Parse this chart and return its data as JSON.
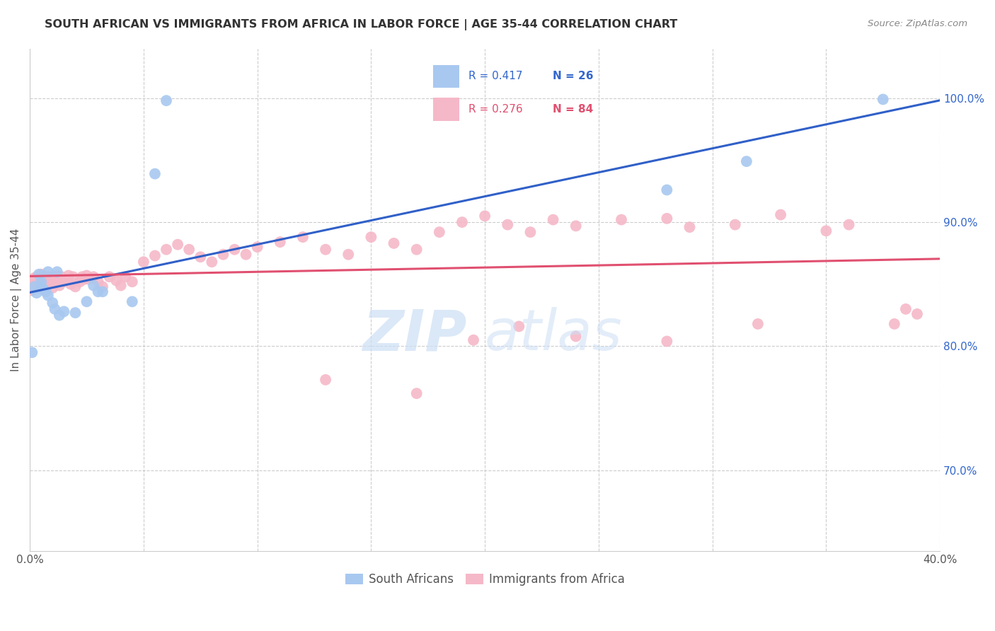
{
  "title": "SOUTH AFRICAN VS IMMIGRANTS FROM AFRICA IN LABOR FORCE | AGE 35-44 CORRELATION CHART",
  "source": "Source: ZipAtlas.com",
  "ylabel": "In Labor Force | Age 35-44",
  "xlim": [
    0.0,
    0.4
  ],
  "ylim": [
    0.635,
    1.04
  ],
  "yticks": [
    0.7,
    0.8,
    0.9,
    1.0
  ],
  "xticks": [
    0.0,
    0.05,
    0.1,
    0.15,
    0.2,
    0.25,
    0.3,
    0.35,
    0.4
  ],
  "blue_color": "#a8c8f0",
  "pink_color": "#f5b8c8",
  "blue_line_color": "#3060c8",
  "pink_line_color": "#e05070",
  "legend_text_blue": "South Africans",
  "legend_text_pink": "Immigrants from Africa",
  "blue_x": [
    0.001,
    0.002,
    0.003,
    0.004,
    0.005,
    0.005,
    0.006,
    0.007,
    0.008,
    0.008,
    0.01,
    0.011,
    0.012,
    0.013,
    0.015,
    0.02,
    0.025,
    0.028,
    0.03,
    0.032,
    0.045,
    0.055,
    0.06,
    0.28,
    0.315,
    0.375
  ],
  "blue_y": [
    0.795,
    0.848,
    0.843,
    0.858,
    0.848,
    0.852,
    0.846,
    0.844,
    0.841,
    0.86,
    0.835,
    0.83,
    0.86,
    0.825,
    0.828,
    0.827,
    0.836,
    0.849,
    0.844,
    0.844,
    0.836,
    0.939,
    0.998,
    0.926,
    0.949,
    0.999
  ],
  "pink_x": [
    0.001,
    0.001,
    0.002,
    0.002,
    0.003,
    0.003,
    0.004,
    0.004,
    0.005,
    0.005,
    0.006,
    0.006,
    0.007,
    0.007,
    0.008,
    0.008,
    0.009,
    0.01,
    0.01,
    0.011,
    0.012,
    0.013,
    0.014,
    0.015,
    0.016,
    0.017,
    0.018,
    0.019,
    0.02,
    0.022,
    0.023,
    0.024,
    0.025,
    0.026,
    0.028,
    0.03,
    0.032,
    0.035,
    0.038,
    0.04,
    0.042,
    0.045,
    0.05,
    0.055,
    0.06,
    0.065,
    0.07,
    0.075,
    0.08,
    0.085,
    0.09,
    0.095,
    0.1,
    0.11,
    0.12,
    0.13,
    0.14,
    0.15,
    0.16,
    0.17,
    0.18,
    0.19,
    0.2,
    0.21,
    0.22,
    0.23,
    0.24,
    0.26,
    0.28,
    0.29,
    0.31,
    0.33,
    0.35,
    0.36,
    0.38,
    0.39,
    0.17,
    0.195,
    0.215,
    0.24,
    0.13,
    0.28,
    0.32,
    0.385
  ],
  "pink_y": [
    0.845,
    0.852,
    0.848,
    0.855,
    0.85,
    0.856,
    0.847,
    0.853,
    0.852,
    0.858,
    0.849,
    0.856,
    0.851,
    0.855,
    0.849,
    0.856,
    0.852,
    0.847,
    0.856,
    0.853,
    0.857,
    0.849,
    0.856,
    0.852,
    0.854,
    0.857,
    0.85,
    0.856,
    0.848,
    0.852,
    0.856,
    0.854,
    0.857,
    0.854,
    0.856,
    0.852,
    0.848,
    0.856,
    0.853,
    0.849,
    0.856,
    0.852,
    0.868,
    0.873,
    0.878,
    0.882,
    0.878,
    0.872,
    0.868,
    0.874,
    0.878,
    0.874,
    0.88,
    0.884,
    0.888,
    0.878,
    0.874,
    0.888,
    0.883,
    0.878,
    0.892,
    0.9,
    0.905,
    0.898,
    0.892,
    0.902,
    0.897,
    0.902,
    0.903,
    0.896,
    0.898,
    0.906,
    0.893,
    0.898,
    0.818,
    0.826,
    0.762,
    0.805,
    0.816,
    0.808,
    0.773,
    0.804,
    0.818,
    0.83
  ]
}
